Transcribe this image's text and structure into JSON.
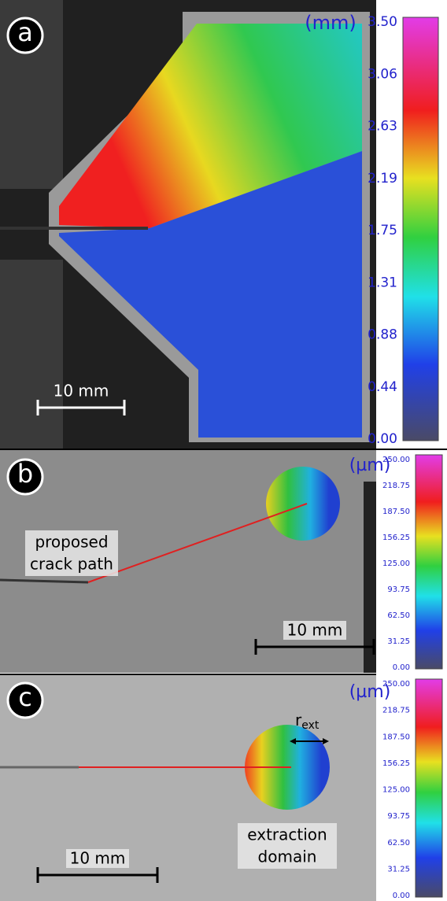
{
  "panels": [
    {
      "label": "a",
      "unit": "(mm)",
      "colorbar_ticks": [
        "3.50",
        "3.06",
        "2.63",
        "2.19",
        "1.75",
        "1.31",
        "0.88",
        "0.44",
        "0.00"
      ],
      "scale_bar": "10 mm"
    },
    {
      "label": "b",
      "unit": "(µm)",
      "colorbar_ticks": [
        "250.00",
        "218.75",
        "187.50",
        "156.25",
        "125.00",
        "93.75",
        "62.50",
        "31.25",
        "0.00"
      ],
      "scale_bar": "10 mm",
      "annotation": [
        "proposed",
        "crack path"
      ]
    },
    {
      "label": "c",
      "unit": "(µm)",
      "colorbar_ticks": [
        "250.00",
        "218.75",
        "187.50",
        "156.25",
        "125.00",
        "93.75",
        "62.50",
        "31.25",
        "0.00"
      ],
      "scale_bar": "10 mm",
      "annotation": [
        "extraction",
        "domain"
      ],
      "radius_symbol": "r",
      "radius_subscript": "ext"
    }
  ]
}
